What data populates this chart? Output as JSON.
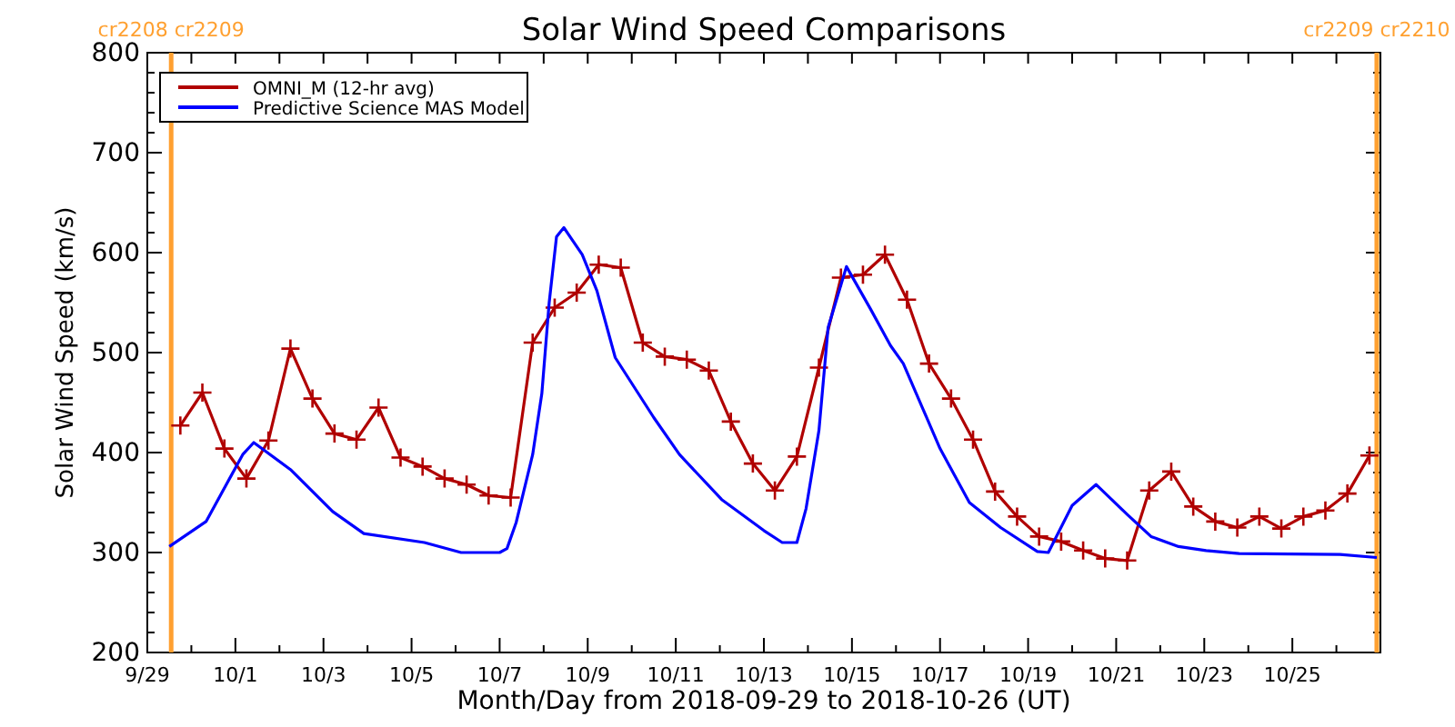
{
  "chart_data": {
    "type": "line",
    "title": "Solar Wind Speed Comparisons",
    "xlabel": "Month/Day from 2018-09-29 to 2018-10-26 (UT)",
    "ylabel": "Solar Wind Speed (km/s)",
    "xlim": [
      "2018-09-29",
      "2018-10-27"
    ],
    "xticks": [
      {
        "value": "2018-09-29",
        "label": "9/29"
      },
      {
        "value": "2018-09-30",
        "label": null
      },
      {
        "value": "2018-10-01",
        "label": "10/1"
      },
      {
        "value": "2018-10-02",
        "label": null
      },
      {
        "value": "2018-10-03",
        "label": "10/3"
      },
      {
        "value": "2018-10-04",
        "label": null
      },
      {
        "value": "2018-10-05",
        "label": "10/5"
      },
      {
        "value": "2018-10-06",
        "label": null
      },
      {
        "value": "2018-10-07",
        "label": "10/7"
      },
      {
        "value": "2018-10-08",
        "label": null
      },
      {
        "value": "2018-10-09",
        "label": "10/9"
      },
      {
        "value": "2018-10-10",
        "label": null
      },
      {
        "value": "2018-10-11",
        "label": "10/11"
      },
      {
        "value": "2018-10-12",
        "label": null
      },
      {
        "value": "2018-10-13",
        "label": "10/13"
      },
      {
        "value": "2018-10-14",
        "label": null
      },
      {
        "value": "2018-10-15",
        "label": "10/15"
      },
      {
        "value": "2018-10-16",
        "label": null
      },
      {
        "value": "2018-10-17",
        "label": "10/17"
      },
      {
        "value": "2018-10-18",
        "label": null
      },
      {
        "value": "2018-10-19",
        "label": "10/19"
      },
      {
        "value": "2018-10-20",
        "label": null
      },
      {
        "value": "2018-10-21",
        "label": "10/21"
      },
      {
        "value": "2018-10-22",
        "label": null
      },
      {
        "value": "2018-10-23",
        "label": "10/23"
      },
      {
        "value": "2018-10-24",
        "label": null
      },
      {
        "value": "2018-10-25",
        "label": "10/25"
      },
      {
        "value": "2018-10-26",
        "label": null
      }
    ],
    "ylim": [
      200,
      800
    ],
    "yticks": [
      200,
      {
        "value": 220,
        "label": null
      },
      {
        "value": 240,
        "label": null
      },
      {
        "value": 260,
        "label": null
      },
      {
        "value": 280,
        "label": null
      },
      300,
      {
        "value": 320,
        "label": null
      },
      {
        "value": 340,
        "label": null
      },
      {
        "value": 360,
        "label": null
      },
      {
        "value": 380,
        "label": null
      },
      400,
      {
        "value": 420,
        "label": null
      },
      {
        "value": 440,
        "label": null
      },
      {
        "value": 460,
        "label": null
      },
      {
        "value": 480,
        "label": null
      },
      500,
      {
        "value": 520,
        "label": null
      },
      {
        "value": 540,
        "label": null
      },
      {
        "value": 560,
        "label": null
      },
      {
        "value": 580,
        "label": null
      },
      600,
      {
        "value": 620,
        "label": null
      },
      {
        "value": 640,
        "label": null
      },
      {
        "value": 660,
        "label": null
      },
      {
        "value": 680,
        "label": null
      },
      700,
      {
        "value": 720,
        "label": null
      },
      {
        "value": 740,
        "label": null
      },
      {
        "value": 760,
        "label": null
      },
      {
        "value": 780,
        "label": null
      },
      800
    ],
    "grid": false,
    "legend": "top left",
    "line_style": "solid",
    "ref_lines": [
      {
        "axis": "x",
        "value": "2018-09-29T13:00",
        "label": "cr2208 cr2209",
        "color": "#ffa030"
      },
      {
        "axis": "x",
        "value": "2018-10-26T22:00",
        "label": "cr2209 cr2210",
        "color": "#ffa030"
      }
    ],
    "series": [
      {
        "name": "OMNI_M (12-hr avg)",
        "color": "#b00000",
        "marker": "cross",
        "x": [
          "2018-09-29T18:00",
          "2018-09-30T06:00",
          "2018-09-30T18:00",
          "2018-10-01T06:00",
          "2018-10-01T18:00",
          "2018-10-02T06:00",
          "2018-10-02T18:00",
          "2018-10-03T06:00",
          "2018-10-03T18:00",
          "2018-10-04T06:00",
          "2018-10-04T18:00",
          "2018-10-05T06:00",
          "2018-10-05T18:00",
          "2018-10-06T06:00",
          "2018-10-06T18:00",
          "2018-10-07T06:00",
          "2018-10-07T18:00",
          "2018-10-08T06:00",
          "2018-10-08T18:00",
          "2018-10-09T06:00",
          "2018-10-09T18:00",
          "2018-10-10T06:00",
          "2018-10-10T18:00",
          "2018-10-11T06:00",
          "2018-10-11T18:00",
          "2018-10-12T06:00",
          "2018-10-12T18:00",
          "2018-10-13T06:00",
          "2018-10-13T18:00",
          "2018-10-14T06:00",
          "2018-10-14T18:00",
          "2018-10-15T06:00",
          "2018-10-15T18:00",
          "2018-10-16T06:00",
          "2018-10-16T18:00",
          "2018-10-17T06:00",
          "2018-10-17T18:00",
          "2018-10-18T06:00",
          "2018-10-18T18:00",
          "2018-10-19T06:00",
          "2018-10-19T18:00",
          "2018-10-20T06:00",
          "2018-10-20T18:00",
          "2018-10-21T06:00",
          "2018-10-21T18:00",
          "2018-10-22T06:00",
          "2018-10-22T18:00",
          "2018-10-23T06:00",
          "2018-10-23T18:00",
          "2018-10-24T06:00",
          "2018-10-24T18:00",
          "2018-10-25T06:00",
          "2018-10-25T18:00",
          "2018-10-26T06:00",
          "2018-10-26T18:00"
        ],
        "values": [
          427,
          460,
          404,
          374,
          412,
          504,
          454,
          419,
          413,
          445,
          395,
          386,
          374,
          368,
          357,
          355,
          510,
          545,
          560,
          588,
          585,
          510,
          496,
          493,
          482,
          431,
          389,
          362,
          396,
          485,
          575,
          578,
          598,
          553,
          489,
          454,
          413,
          361,
          336,
          316,
          311,
          302,
          294,
          292,
          362,
          381,
          346,
          331,
          325,
          336,
          324,
          336,
          342,
          359,
          397
        ]
      },
      {
        "name": "Predictive Science MAS Model",
        "color": "#0000ff",
        "marker": "none",
        "x": [
          "2018-09-29T12:00",
          "2018-09-30T08:00",
          "2018-10-01T04:00",
          "2018-10-01T10:00",
          "2018-10-02T06:00",
          "2018-10-03T05:00",
          "2018-10-03T22:00",
          "2018-10-05T07:00",
          "2018-10-06T03:00",
          "2018-10-07T00:00",
          "2018-10-07T04:00",
          "2018-10-07T09:00",
          "2018-10-07T18:00",
          "2018-10-07T23:00",
          "2018-10-08T03:00",
          "2018-10-08T07:00",
          "2018-10-08T11:00",
          "2018-10-08T21:00",
          "2018-10-09T05:00",
          "2018-10-09T15:00",
          "2018-10-10T12:00",
          "2018-10-11T02:00",
          "2018-10-12T01:00",
          "2018-10-13T00:00",
          "2018-10-13T10:00",
          "2018-10-13T18:00",
          "2018-10-13T23:00",
          "2018-10-14T06:00",
          "2018-10-14T11:00",
          "2018-10-14T21:00",
          "2018-10-15T10:00",
          "2018-10-15T21:00",
          "2018-10-16T04:00",
          "2018-10-17T00:00",
          "2018-10-17T16:00",
          "2018-10-18T09:00",
          "2018-10-19T05:00",
          "2018-10-19T11:00",
          "2018-10-20T00:00",
          "2018-10-20T13:00",
          "2018-10-21T06:00",
          "2018-10-21T19:00",
          "2018-10-22T10:00",
          "2018-10-23T01:00",
          "2018-10-23T19:00",
          "2018-10-26T02:00",
          "2018-10-26T22:00"
        ],
        "values": [
          306,
          331,
          398,
          410,
          383,
          341,
          319,
          310,
          300,
          300,
          304,
          330,
          398,
          459,
          550,
          616,
          625,
          598,
          562,
          495,
          435,
          398,
          353,
          322,
          310,
          310,
          344,
          422,
          525,
          586,
          544,
          507,
          489,
          404,
          350,
          325,
          301,
          300,
          347,
          368,
          338,
          316,
          306,
          302,
          299,
          298,
          295
        ]
      }
    ]
  }
}
